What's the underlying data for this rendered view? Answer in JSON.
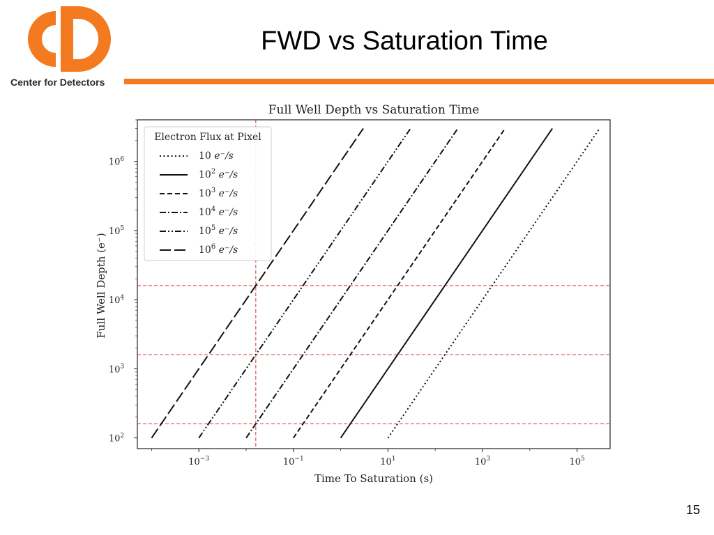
{
  "brand": {
    "org_name": "Center for Detectors",
    "accent_color": "#f47a20"
  },
  "slide": {
    "title": "FWD vs Saturation Time",
    "page_number": "15"
  },
  "chart_data": {
    "type": "line",
    "title": "Full Well Depth vs Saturation Time",
    "xlabel": "Time To Saturation (s)",
    "ylabel": "Full Well Depth (e⁻)",
    "xscale": "log",
    "yscale": "log",
    "xlim": [
      5e-05,
      500000
    ],
    "ylim": [
      70,
      4000000
    ],
    "x_ticks": [
      {
        "value": 0.001,
        "base": "10",
        "exp": "−3"
      },
      {
        "value": 0.1,
        "base": "10",
        "exp": "−1"
      },
      {
        "value": 10,
        "base": "10",
        "exp": "1"
      },
      {
        "value": 1000,
        "base": "10",
        "exp": "3"
      },
      {
        "value": 100000,
        "base": "10",
        "exp": "5"
      }
    ],
    "y_ticks": [
      {
        "value": 100,
        "base": "10",
        "exp": "2"
      },
      {
        "value": 1000,
        "base": "10",
        "exp": "3"
      },
      {
        "value": 10000,
        "base": "10",
        "exp": "4"
      },
      {
        "value": 100000,
        "base": "10",
        "exp": "5"
      },
      {
        "value": 1000000,
        "base": "10",
        "exp": "6"
      }
    ],
    "legend": {
      "title": "Electron Flux at Pixel",
      "placement": "upper-left"
    },
    "series": [
      {
        "name_base": "10",
        "name_exp": "",
        "name_unit": "e⁻/s",
        "flux": 10,
        "style": "dotted",
        "x": [
          10,
          300000
        ],
        "y": [
          100,
          3000000
        ]
      },
      {
        "name_base": "10",
        "name_exp": "2",
        "name_unit": "e⁻/s",
        "flux": 100,
        "style": "solid",
        "x": [
          1,
          30000
        ],
        "y": [
          100,
          3000000
        ]
      },
      {
        "name_base": "10",
        "name_exp": "3",
        "name_unit": "e⁻/s",
        "flux": 1000,
        "style": "dashed",
        "x": [
          0.1,
          3000
        ],
        "y": [
          100,
          3000000
        ]
      },
      {
        "name_base": "10",
        "name_exp": "4",
        "name_unit": "e⁻/s",
        "flux": 10000,
        "style": "dashdot",
        "x": [
          0.01,
          300
        ],
        "y": [
          100,
          3000000
        ]
      },
      {
        "name_base": "10",
        "name_exp": "5",
        "name_unit": "e⁻/s",
        "flux": 100000,
        "style": "dashdotdot",
        "x": [
          0.001,
          30
        ],
        "y": [
          100,
          3000000
        ]
      },
      {
        "name_base": "10",
        "name_exp": "6",
        "name_unit": "e⁻/s",
        "flux": 1000000,
        "style": "longdash",
        "x": [
          0.0001,
          3
        ],
        "y": [
          100,
          3000000
        ]
      }
    ],
    "reference_lines": {
      "color": "#e03030",
      "horizontal": [
        160,
        1600,
        16000
      ],
      "vertical": [
        0.016
      ]
    },
    "grid": false
  }
}
